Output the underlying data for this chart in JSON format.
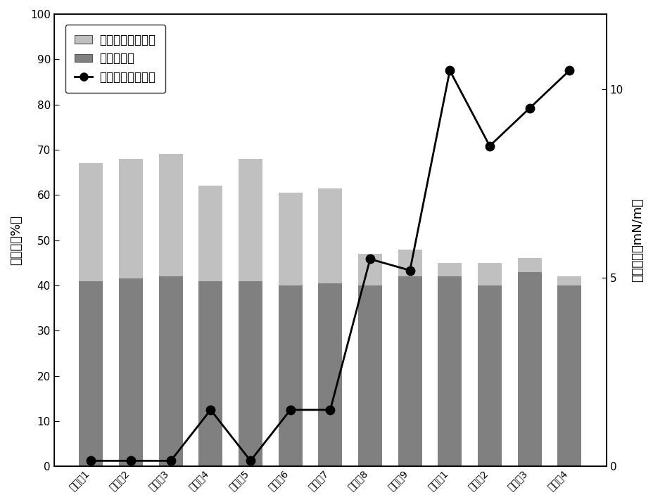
{
  "categories": [
    "实施例1",
    "实施例2",
    "实施例3",
    "实施例4",
    "实施例5",
    "实施例6",
    "实施例7",
    "实施例8",
    "实施例9",
    "对比例1",
    "对比例2",
    "对比例3",
    "对比例4"
  ],
  "water_drive": [
    41.0,
    41.5,
    42.0,
    41.0,
    41.0,
    40.0,
    40.5,
    40.0,
    42.0,
    42.0,
    40.0,
    43.0,
    40.0
  ],
  "nano_extra": [
    26.0,
    26.5,
    27.0,
    21.0,
    27.0,
    20.5,
    21.0,
    7.0,
    6.0,
    3.0,
    5.0,
    3.0,
    2.0
  ],
  "interface_tension": [
    0.15,
    0.15,
    0.15,
    1.5,
    0.15,
    1.5,
    1.5,
    5.5,
    5.2,
    10.5,
    8.5,
    9.5,
    10.5
  ],
  "bar_color_water": "#808080",
  "bar_color_nano": "#c0c0c0",
  "line_color": "#000000",
  "ylabel_left": "采收率（%）",
  "ylabel_right": "界面张力（mN/m）",
  "ylim_left": [
    0,
    100
  ],
  "ylim_right": [
    0,
    12
  ],
  "yticks_left": [
    0,
    10,
    20,
    30,
    40,
    50,
    60,
    70,
    80,
    90,
    100
  ],
  "yticks_right": [
    0,
    5,
    10
  ],
  "legend_labels": [
    "纳米流体驱采收率",
    "水驱采收率",
    "纳米流体界面张力"
  ],
  "background_color": "#ffffff"
}
